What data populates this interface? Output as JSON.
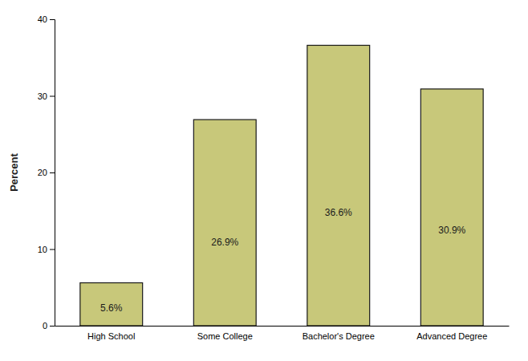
{
  "chart_data": {
    "type": "bar",
    "categories": [
      "High School",
      "Some College",
      "Bachelor's Degree",
      "Advanced Degree"
    ],
    "values": [
      5.6,
      26.9,
      36.6,
      30.9
    ],
    "value_labels": [
      "5.6%",
      "26.9%",
      "36.6%",
      "30.9%"
    ],
    "data_labels": true,
    "color": "#c8c87a",
    "ylabel": "Percent",
    "ylim": [
      0,
      40
    ],
    "yticks": [
      0,
      10,
      20,
      30,
      40
    ],
    "grid": false
  }
}
